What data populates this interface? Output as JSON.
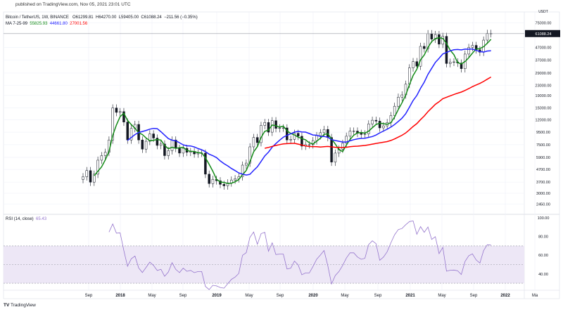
{
  "header": {
    "published": "published on TradingView.com, Nov 05, 2021 23:01 UTC"
  },
  "legend": {
    "symbol": "Bitcoin / TetherUS, 1W, BINANCE",
    "open": "O61299.81",
    "high": "H64270.00",
    "low": "L59405.00",
    "close": "C61088.24",
    "change": "−211.56 (−0.35%)",
    "ma_label": "MA 7-25-99",
    "ma1": "55825.93",
    "ma2": "44661.80",
    "ma3": "27001.56"
  },
  "colors": {
    "up": "#131722",
    "ma1": "#089981",
    "ma1_line": "#138a17",
    "ma2": "#2222ff",
    "ma3": "#ff0000",
    "rsi": "#9575cd",
    "rsi_band": "#ede7f6"
  },
  "currency": "USDT",
  "last_price_label": "61088.24",
  "rsi_legend": {
    "label": "RSI (14, close)",
    "value": "65.43"
  },
  "footer": {
    "brand": "TradingView"
  },
  "chart_data": {
    "type": "candlestick",
    "title": "Bitcoin / TetherUS, 1W, BINANCE",
    "scale": "log",
    "y_ticks": [
      "75000.00",
      "47000.00",
      "37000.00",
      "29000.00",
      "23000.00",
      "19000.00",
      "15000.00",
      "12000.00",
      "9500.00",
      "7500.00",
      "5900.00",
      "4700.00",
      "3700.00",
      "3000.00",
      "2450.00"
    ],
    "y_tick_values": [
      75000,
      47000,
      37000,
      29000,
      23000,
      19000,
      15000,
      12000,
      9500,
      7500,
      5900,
      4700,
      3700,
      3000,
      2450
    ],
    "x_ticks": [
      "Sep",
      "2018",
      "May",
      "Sep",
      "2019",
      "May",
      "Sep",
      "2020",
      "May",
      "Sep",
      "2021",
      "May",
      "Sep",
      "2022",
      "Ma"
    ],
    "x_tick_bold": [
      false,
      true,
      false,
      false,
      true,
      false,
      false,
      true,
      false,
      false,
      true,
      false,
      false,
      true,
      false
    ],
    "start": "2017-08-14",
    "step": "2 weeks",
    "closes": [
      4100,
      4600,
      3700,
      4300,
      5600,
      6100,
      6500,
      8200,
      15000,
      13800,
      14000,
      11500,
      8200,
      10200,
      11000,
      8200,
      6900,
      8000,
      9200,
      8500,
      7400,
      7600,
      6100,
      6700,
      8200,
      7000,
      6400,
      7000,
      6500,
      6600,
      6300,
      6400,
      6400,
      4300,
      3600,
      3900,
      3800,
      3550,
      3450,
      3650,
      3850,
      3950,
      4100,
      5100,
      5300,
      7200,
      8600,
      7800,
      10800,
      11400,
      9500,
      11800,
      10200,
      10300,
      10300,
      8200,
      8300,
      9300,
      8800,
      7300,
      7500,
      7500,
      8100,
      8900,
      9400,
      10000,
      8600,
      5400,
      6400,
      6900,
      7700,
      8800,
      9700,
      9700,
      9300,
      9100,
      9200,
      11100,
      11900,
      11700,
      10300,
      10700,
      11400,
      13000,
      15500,
      18400,
      19200,
      23500,
      32000,
      36000,
      33000,
      48000,
      46000,
      61000,
      55000,
      60000,
      50000,
      58000,
      34700,
      35600,
      35800,
      35000,
      31500,
      41500,
      47000,
      48900,
      45000,
      43000,
      54000,
      61300,
      61088
    ],
    "ma_periods": [
      4,
      13,
      50
    ],
    "rsi": {
      "ylim": [
        20,
        100
      ],
      "y_ticks": [
        "100.00",
        "80.00",
        "60.00",
        "40.00"
      ],
      "y_tick_values": [
        100,
        80,
        60,
        40
      ],
      "bands": [
        70,
        50,
        30
      ],
      "period": 7
    }
  }
}
